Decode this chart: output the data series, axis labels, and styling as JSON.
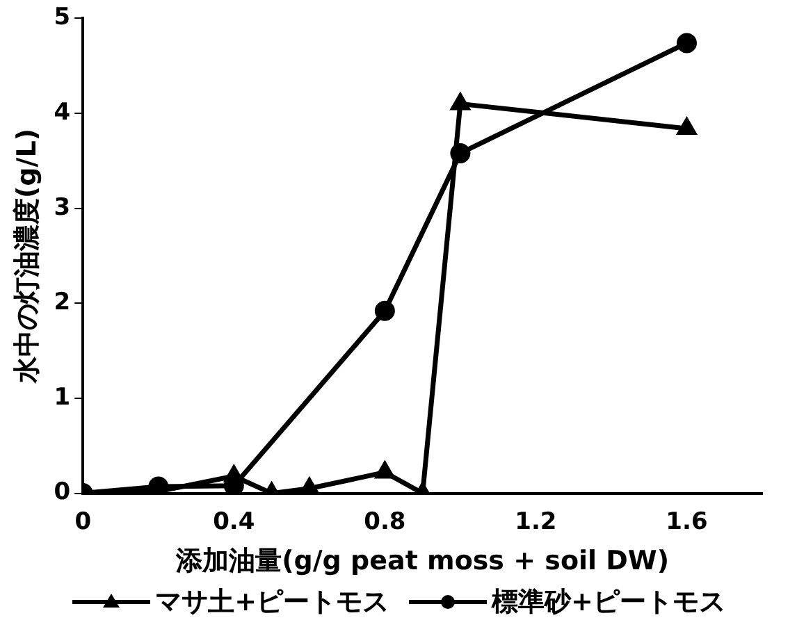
{
  "chart_data": {
    "type": "line",
    "xlabel": "添加油量(g/g peat moss + soil DW)",
    "ylabel": "水中の灯油濃度(g/L)",
    "xlim": [
      0,
      1.8
    ],
    "xticks": [
      0,
      0.4,
      0.8,
      1.2,
      1.6
    ],
    "ylim": [
      0,
      5
    ],
    "yticks": [
      0,
      1,
      2,
      3,
      4,
      5
    ],
    "grid": false,
    "legend": "bottom",
    "series": [
      {
        "name": "マサ土+ピートモス",
        "color": "#000000",
        "marker": "triangle",
        "x": [
          0,
          0.2,
          0.4,
          0.5,
          0.6,
          0.8,
          0.9,
          1.0,
          1.6
        ],
        "values": [
          0,
          0.02,
          0.18,
          0,
          0.05,
          0.22,
          0,
          4.1,
          3.84
        ]
      },
      {
        "name": "標準砂+ピートモス",
        "color": "#000000",
        "marker": "circle",
        "x": [
          0,
          0.2,
          0.4,
          0.8,
          1.0,
          1.6
        ],
        "values": [
          0,
          0.07,
          0.08,
          1.92,
          3.58,
          4.74
        ]
      }
    ]
  }
}
